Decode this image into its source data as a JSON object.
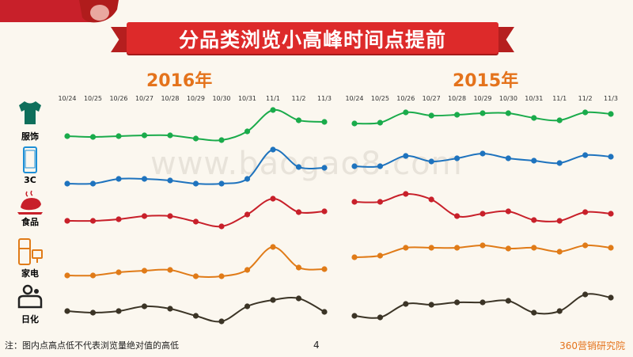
{
  "header": {
    "title": "分品类浏览小高峰时间点提前"
  },
  "categories": [
    {
      "label": "服饰",
      "color": "#1aab4b",
      "icon": "tshirt-icon"
    },
    {
      "label": "3C",
      "color": "#1e73be",
      "icon": "phone-icon"
    },
    {
      "label": "食品",
      "color": "#c8202a",
      "icon": "roast-chicken-icon"
    },
    {
      "label": "家电",
      "color": "#e07b18",
      "icon": "appliance-icon"
    },
    {
      "label": "日化",
      "color": "#3b3426",
      "icon": "toiletries-icon"
    }
  ],
  "chart_data": [
    {
      "type": "line",
      "title": "2016年",
      "x": [
        "10/24",
        "10/25",
        "10/26",
        "10/27",
        "10/28",
        "10/29",
        "10/30",
        "10/31",
        "11/1",
        "11/2",
        "11/3"
      ],
      "series": [
        {
          "name": "服饰",
          "values": [
            172,
            173,
            172,
            171,
            171,
            175,
            177,
            166,
            139,
            152,
            154
          ]
        },
        {
          "name": "3C",
          "values": [
            232,
            232,
            226,
            226,
            228,
            232,
            232,
            226,
            189,
            211,
            212
          ]
        },
        {
          "name": "食品",
          "values": [
            279,
            279,
            277,
            273,
            273,
            280,
            286,
            271,
            251,
            268,
            267
          ]
        },
        {
          "name": "家电",
          "values": [
            348,
            348,
            344,
            342,
            341,
            349,
            349,
            341,
            312,
            338,
            340
          ]
        },
        {
          "name": "日化",
          "values": [
            393,
            395,
            393,
            387,
            390,
            399,
            406,
            387,
            379,
            377,
            394
          ]
        }
      ]
    },
    {
      "type": "line",
      "title": "2015年",
      "x": [
        "10/24",
        "10/25",
        "10/26",
        "10/27",
        "10/28",
        "10/29",
        "10/30",
        "10/31",
        "11/1",
        "11/2",
        "11/3"
      ],
      "series": [
        {
          "name": "服饰",
          "values": [
            156,
            155,
            142,
            146,
            145,
            143,
            143,
            149,
            152,
            142,
            144
          ]
        },
        {
          "name": "3C",
          "values": [
            210,
            210,
            197,
            204,
            200,
            194,
            200,
            203,
            206,
            196,
            198
          ]
        },
        {
          "name": "食品",
          "values": [
            255,
            255,
            245,
            252,
            273,
            270,
            267,
            278,
            279,
            268,
            270
          ]
        },
        {
          "name": "家电",
          "values": [
            325,
            323,
            313,
            313,
            313,
            310,
            314,
            313,
            318,
            310,
            313
          ]
        },
        {
          "name": "日化",
          "values": [
            399,
            401,
            384,
            385,
            382,
            382,
            380,
            395,
            393,
            372,
            376
          ]
        }
      ]
    }
  ],
  "watermark": "www.baogao8.com",
  "footer": {
    "note": "注：图内点高点低不代表浏览量绝对值的高低",
    "page": "4",
    "brand": "360营销研究院"
  }
}
